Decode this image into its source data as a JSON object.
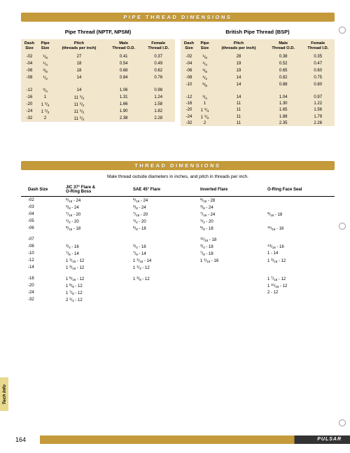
{
  "sections": {
    "pipe_thread_bar": "PIPE THREAD DIMENSIONS",
    "thread_dim_bar": "THREAD DIMENSIONS"
  },
  "pipe_tables": {
    "left_title": "Pipe Thread (NPTF, NPSM)",
    "right_title": "British Pipe Thread (BSP)",
    "headers": [
      "Dash\nSize",
      "Pipe\nSize",
      "Pitch\n(threads per inch)",
      "Male\nThread O.D.",
      "Female\nThread I.D."
    ],
    "headers_bsp": [
      "Dash\nSize",
      "Pipe\nSize",
      "Pitch\n(threads per inch)",
      "Male\nThread O.D.",
      "Female\nThread I.D."
    ]
  },
  "pipe_rows_left_a": [
    [
      "-02",
      "1/8",
      "27",
      "0.41",
      "0.37"
    ],
    [
      "-04",
      "1/4",
      "18",
      "0.54",
      "0.49"
    ],
    [
      "-06",
      "3/8",
      "18",
      "0.68",
      "0.62"
    ],
    [
      "-08",
      "1/2",
      "14",
      "0.84",
      "0.76"
    ]
  ],
  "pipe_rows_left_b": [
    [
      "-12",
      "3/4",
      "14",
      "1.06",
      "0.98"
    ],
    [
      "-16",
      "1",
      "11 1/2",
      "1.31",
      "1.24"
    ],
    [
      "-20",
      "1 1/4",
      "11 1/2",
      "1.66",
      "1.58"
    ],
    [
      "-24",
      "1 1/2",
      "11 1/2",
      "1.90",
      "1.82"
    ],
    [
      "-32",
      "2",
      "11 1/2",
      "2.38",
      "2.28"
    ]
  ],
  "pipe_rows_right_a": [
    [
      "-02",
      "1/8",
      "28",
      "0.38",
      "0.35"
    ],
    [
      "-04",
      "1/4",
      "19",
      "0.52",
      "0.47"
    ],
    [
      "-06",
      "3/8",
      "19",
      "0.65",
      "0.60"
    ],
    [
      "-08",
      "1/2",
      "14",
      "0.82",
      "0.75"
    ],
    [
      "-10",
      "5/8",
      "14",
      "0.88",
      "0.80"
    ]
  ],
  "pipe_rows_right_b": [
    [
      "-12",
      "3/4",
      "14",
      "1.04",
      "0.97"
    ],
    [
      "-16",
      "1",
      "11",
      "1.30",
      "1.22"
    ],
    [
      "-20",
      "1 1/4",
      "11",
      "1.65",
      "1.56"
    ],
    [
      "-24",
      "1 1/2",
      "11",
      "1.88",
      "1.79"
    ],
    [
      "-32",
      "2",
      "11",
      "2.35",
      "2.26"
    ]
  ],
  "thread_subtext": "Male thread outside diameters in inches, and pitch in threads per inch.",
  "thread_headers": [
    "Dash Size",
    "JIC 37° Flare &\nO-Ring Boss",
    "SAE 45° Flare",
    "Inverted Flare",
    "O-Ring Face Seal"
  ],
  "thread_rows_a": [
    [
      "-02",
      "5/16 - 24",
      "5/16 - 24",
      "5/16 - 28",
      ""
    ],
    [
      "-03",
      "3/8 - 24",
      "3/8 - 24",
      "3/8 - 24",
      ""
    ],
    [
      "-04",
      "7/16 - 20",
      "7/16 - 20",
      "7/16 - 24",
      "9/16 - 18"
    ],
    [
      "-05",
      "1/2 - 20",
      "1/2 - 20",
      "1/2 - 20",
      ""
    ],
    [
      "-06",
      "9/16 - 18",
      "5/8 - 18",
      "5/8 - 18",
      "11/16 - 16"
    ]
  ],
  "thread_rows_b": [
    [
      "-07",
      "",
      "",
      "11/16 - 18",
      ""
    ],
    [
      "-08",
      "3/4 - 16",
      "3/4 - 16",
      "3/4 - 18",
      "13/16 - 16"
    ],
    [
      "-10",
      "7/8 - 14",
      "7/8 - 14",
      "7/8 - 18",
      "1 - 14"
    ],
    [
      "-12",
      "1 1/16 - 12",
      "1 1/16 - 14",
      "1 1/16 - 16",
      "1 3/16 - 12"
    ],
    [
      "-14",
      "1 3/16 - 12",
      "1 1/4 - 12",
      "",
      ""
    ]
  ],
  "thread_rows_c": [
    [
      "-16",
      "1 5/16 - 12",
      "1 3/8 - 12",
      "",
      "1 7/16 - 12"
    ],
    [
      "-20",
      "1 5/8 - 12",
      "",
      "",
      "1 11/16 - 12"
    ],
    [
      "-24",
      "1 7/8 - 12",
      "",
      "",
      "2 - 12"
    ],
    [
      "-32",
      "2 1/2 - 12",
      "",
      "",
      ""
    ]
  ],
  "side_tab": "Tech Info",
  "footer": {
    "page": "164",
    "brand": "PULSAR"
  },
  "colors": {
    "bar": "#c49a3a",
    "table_bg": "#f2e6cc",
    "tab_bg": "#e8d98f",
    "footer_dark": "#333333"
  }
}
